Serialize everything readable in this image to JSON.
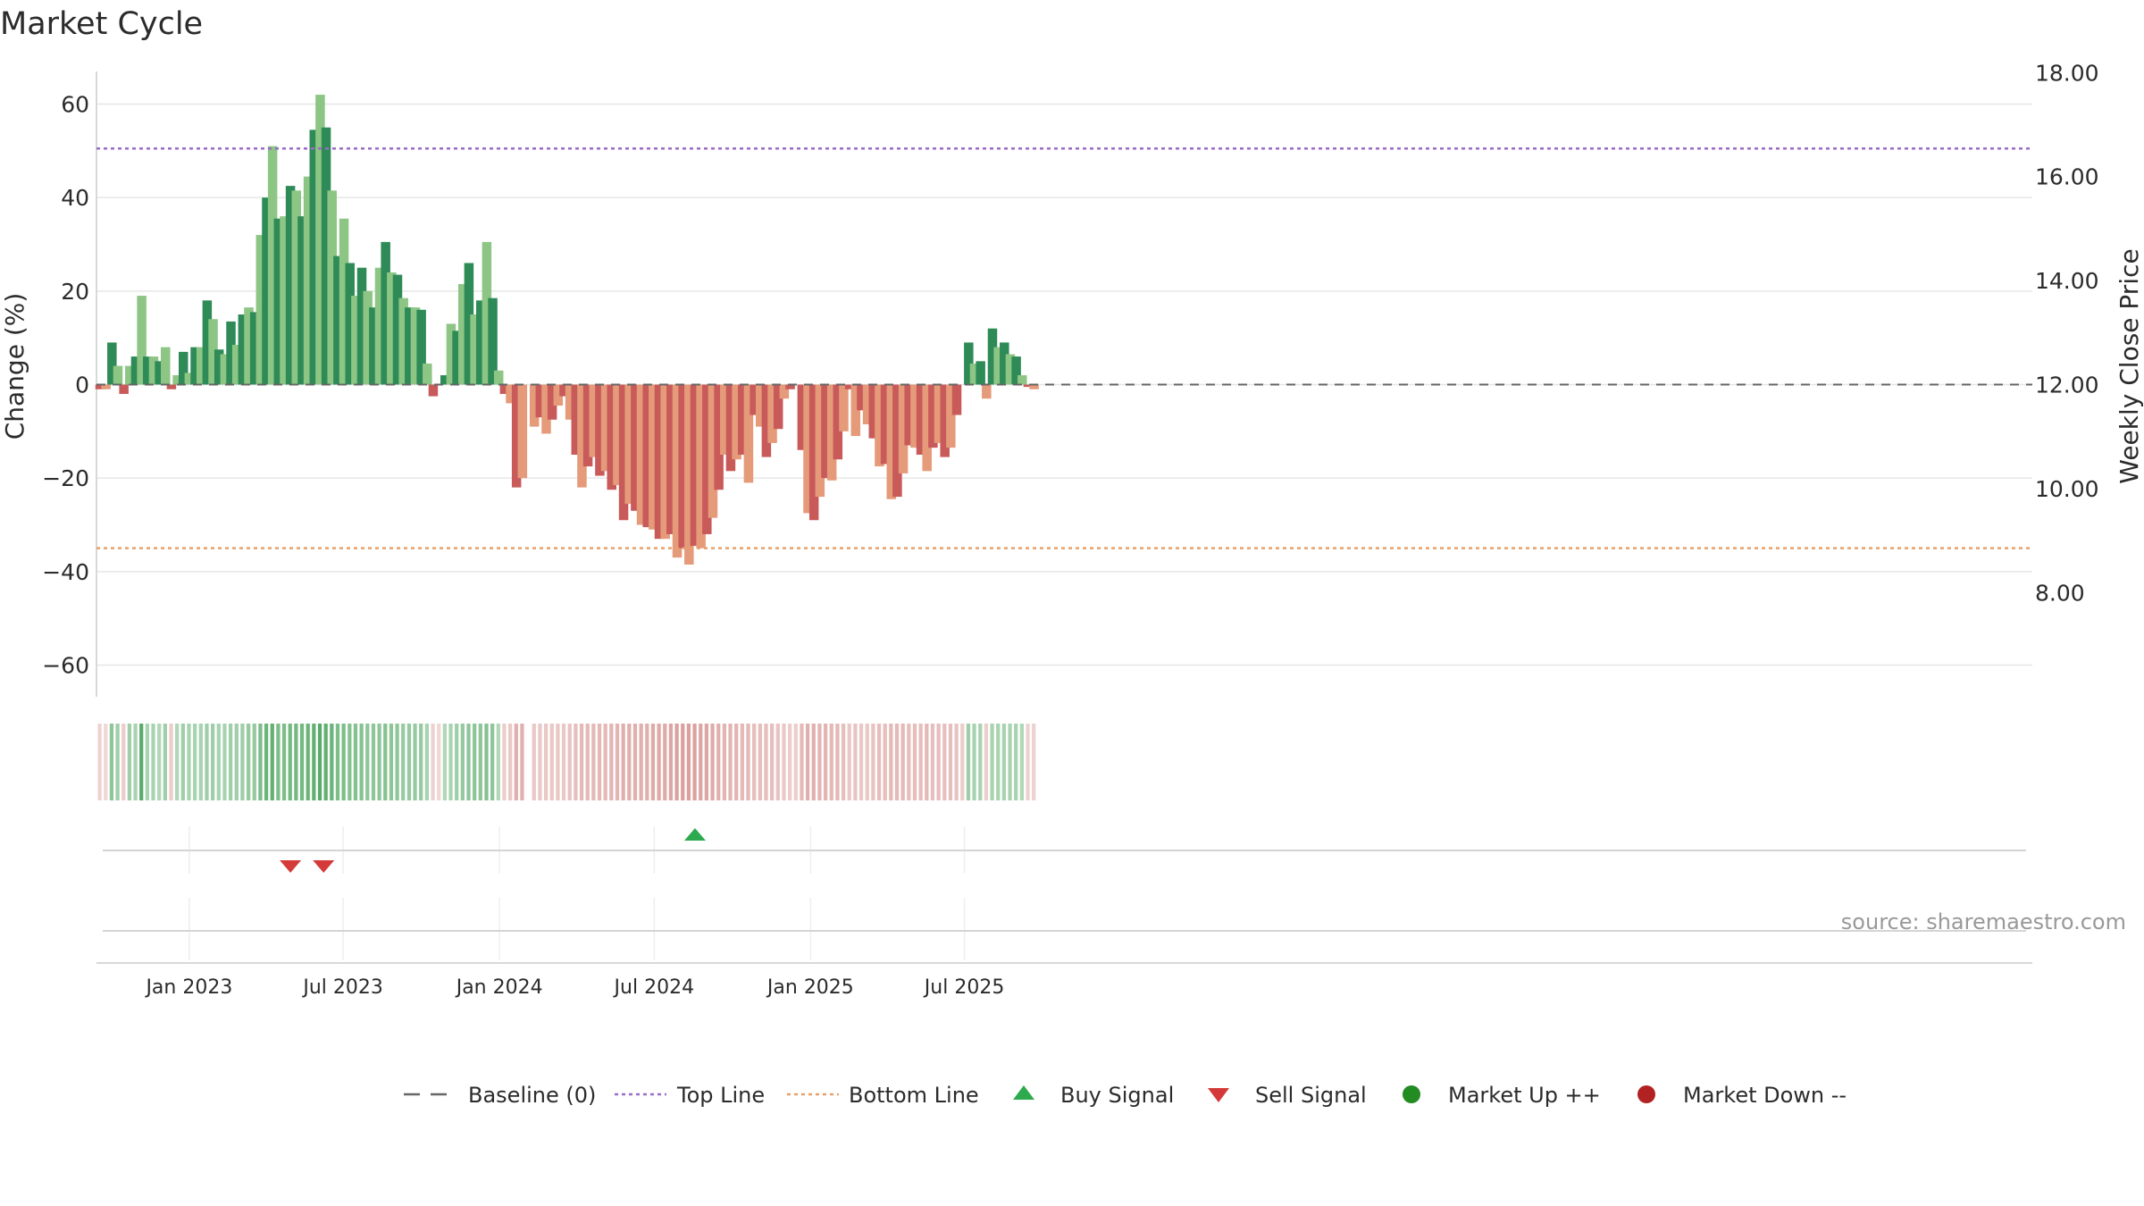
{
  "colors": {
    "up_strong": "#2e8b57",
    "up_light": "#8cc584",
    "down_strong": "#c85a5a",
    "down_light": "#e59a7a",
    "top_line": "#9b6bc6",
    "bottom_line": "#e8a06a",
    "baseline": "#666666",
    "buy": "#2eaa4e",
    "sell": "#d43a3a",
    "market_up": "#228b22",
    "market_down": "#b22222"
  },
  "chart_data": {
    "type": "bar",
    "title": "Market Cycle",
    "ylabel": "Change (%)",
    "y2label": "Weekly Close Price",
    "ylim": [
      -67,
      67
    ],
    "y2lim": [
      6.3,
      18.5
    ],
    "yticks": [
      60,
      40,
      20,
      0,
      -20,
      -40,
      -60
    ],
    "ytick_labels": [
      "60",
      "40",
      "20",
      "0",
      "−20",
      "−40",
      "−60"
    ],
    "y2ticks": [
      18,
      16,
      14,
      12,
      10,
      8
    ],
    "y2tick_labels": [
      "18.00",
      "16.00",
      "14.00",
      "12.00",
      "10.00",
      "8.00"
    ],
    "x_start": "2022-09-18",
    "bar_interval_days": 7,
    "x_end": "2025-10-07",
    "xticks": [
      {
        "date": "2023-01-01",
        "label": "Jan 2023"
      },
      {
        "date": "2023-07-01",
        "label": "Jul 2023"
      },
      {
        "date": "2024-01-01",
        "label": "Jan 2024"
      },
      {
        "date": "2024-07-01",
        "label": "Jul 2024"
      },
      {
        "date": "2025-01-01",
        "label": "Jan 2025"
      },
      {
        "date": "2025-07-01",
        "label": "Jul 2025"
      }
    ],
    "values": [
      -1,
      -1,
      9,
      4,
      -2,
      4,
      6,
      19,
      6,
      6,
      5,
      8,
      -1,
      2,
      7,
      2.5,
      8,
      8,
      18,
      14,
      7.5,
      6.5,
      13.5,
      8.5,
      15,
      16.5,
      15.5,
      32,
      40,
      51,
      35.5,
      36,
      42.5,
      41.5,
      36,
      44.5,
      54.5,
      62,
      55,
      41.5,
      27.5,
      35.5,
      26,
      19,
      25,
      20,
      16.5,
      25,
      30.5,
      24,
      23.5,
      18.5,
      16.5,
      16.5,
      16,
      4.5,
      -2.5,
      0,
      2,
      13,
      11.5,
      21.5,
      26,
      15,
      18,
      30.5,
      18.5,
      3,
      -2,
      -4,
      -22,
      -20,
      0,
      -9,
      -7,
      -10.5,
      -7.5,
      -4.5,
      -2.5,
      -7.5,
      -15,
      -22,
      -17.5,
      -15.5,
      -19.5,
      -18.5,
      -22.5,
      -21.5,
      -29,
      -25.5,
      -27,
      -30,
      -30.5,
      -31,
      -33,
      -33,
      -32,
      -37,
      -35,
      -38.5,
      -34.5,
      -35,
      -32,
      -28.5,
      -22.5,
      -15,
      -18.5,
      -16,
      -15,
      -21,
      -6.5,
      -9,
      -15.5,
      -12.5,
      -9.5,
      -3,
      -1,
      0,
      -14,
      -27.5,
      -29,
      -24,
      -20,
      -20.5,
      -16,
      -10,
      -1,
      -11,
      -5.5,
      -8.5,
      -11.5,
      -17.5,
      -17,
      -24.5,
      -24,
      -19,
      -13,
      -13.5,
      -15,
      -18.5,
      -13.5,
      -12.5,
      -15.5,
      -13.5,
      -6.5,
      0,
      9,
      4.5,
      5,
      -3,
      12,
      8,
      9,
      6.5,
      6,
      2,
      -0.5,
      -1
    ],
    "strength": [
      0.25,
      0.2,
      0.5,
      0.4,
      0.3,
      0.4,
      0.35,
      0.8,
      0.35,
      0.35,
      0.3,
      0.4,
      0.3,
      0.3,
      0.4,
      0.35,
      0.35,
      0.35,
      0.4,
      0.4,
      0.35,
      0.35,
      0.4,
      0.4,
      0.4,
      0.45,
      0.45,
      0.6,
      0.7,
      0.75,
      0.6,
      0.6,
      0.65,
      0.65,
      0.65,
      0.7,
      0.75,
      0.8,
      0.75,
      0.7,
      0.6,
      0.6,
      0.55,
      0.55,
      0.55,
      0.5,
      0.5,
      0.5,
      0.55,
      0.5,
      0.5,
      0.45,
      0.45,
      0.45,
      0.45,
      0.35,
      0.25,
      0.2,
      0.3,
      0.35,
      0.4,
      0.45,
      0.5,
      0.5,
      0.5,
      0.55,
      0.5,
      0.3,
      0.3,
      0.35,
      0.6,
      0.6,
      0.0,
      0.35,
      0.35,
      0.35,
      0.35,
      0.35,
      0.35,
      0.4,
      0.45,
      0.5,
      0.5,
      0.5,
      0.5,
      0.5,
      0.55,
      0.55,
      0.6,
      0.6,
      0.6,
      0.6,
      0.6,
      0.65,
      0.65,
      0.65,
      0.7,
      0.75,
      0.75,
      0.75,
      0.75,
      0.7,
      0.7,
      0.65,
      0.6,
      0.55,
      0.55,
      0.55,
      0.5,
      0.5,
      0.45,
      0.45,
      0.45,
      0.45,
      0.4,
      0.35,
      0.3,
      0.3,
      0.5,
      0.6,
      0.6,
      0.55,
      0.55,
      0.5,
      0.5,
      0.45,
      0.35,
      0.4,
      0.35,
      0.35,
      0.4,
      0.45,
      0.45,
      0.5,
      0.5,
      0.5,
      0.45,
      0.45,
      0.45,
      0.5,
      0.45,
      0.45,
      0.45,
      0.45,
      0.4,
      0.3,
      0.4,
      0.35,
      0.35,
      0.3,
      0.35,
      0.35,
      0.35,
      0.35,
      0.35,
      0.3,
      0.25,
      0.25
    ],
    "reference_lines": [
      {
        "name": "Top Line",
        "y": 50.5
      },
      {
        "name": "Bottom Line",
        "y": -35
      }
    ],
    "signals": [
      {
        "type": "sell",
        "date": "2023-04-30"
      },
      {
        "type": "sell",
        "date": "2023-06-08"
      },
      {
        "type": "buy",
        "date": "2024-08-18"
      }
    ],
    "legend": [
      {
        "label": "Baseline (0)",
        "marker": "dash",
        "color": "#666666"
      },
      {
        "label": "Top Line",
        "marker": "dotted",
        "color": "#9b6bc6"
      },
      {
        "label": "Bottom Line",
        "marker": "dotted",
        "color": "#e8a06a"
      },
      {
        "label": "Buy Signal",
        "marker": "triangle-up",
        "color": "#2eaa4e"
      },
      {
        "label": "Sell Signal",
        "marker": "triangle-down",
        "color": "#d43a3a"
      },
      {
        "label": "Market Up ++",
        "marker": "circle",
        "color": "#228b22"
      },
      {
        "label": "Market Down --",
        "marker": "circle",
        "color": "#b22222"
      }
    ],
    "legend_position": "bottom",
    "grid": true
  },
  "source": "source: sharemaestro.com"
}
